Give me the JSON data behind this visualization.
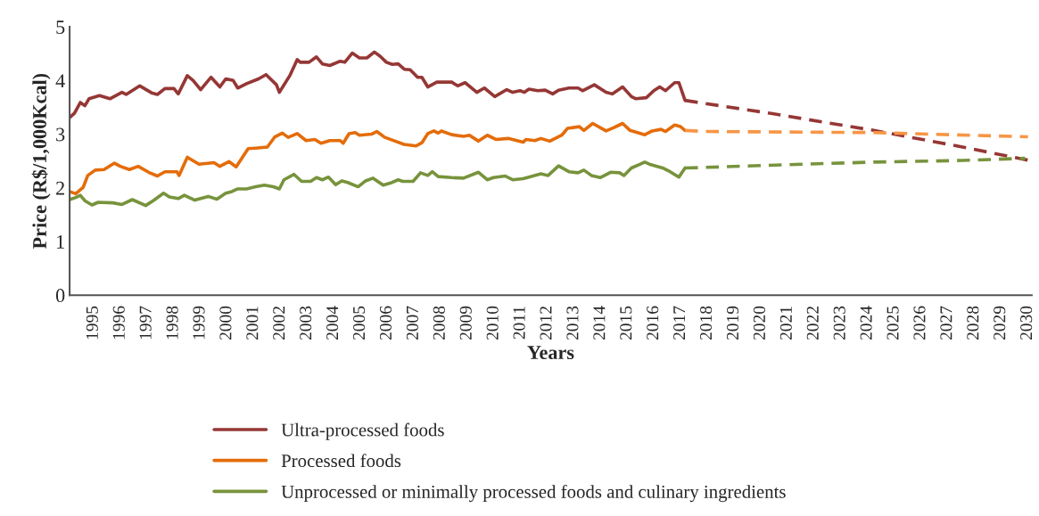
{
  "chart_data": {
    "type": "line",
    "xlabel": "Years",
    "ylabel": "Price (R$/1,000Kcal)",
    "xlim": [
      1994.1,
      2030.15
    ],
    "xticks": [
      1995,
      1996,
      1997,
      1998,
      1999,
      2000,
      2001,
      2002,
      2003,
      2004,
      2005,
      2006,
      2007,
      2008,
      2009,
      2010,
      2011,
      2012,
      2013,
      2014,
      2015,
      2016,
      2017,
      2018,
      2019,
      2020,
      2021,
      2022,
      2023,
      2024,
      2025,
      2026,
      2027,
      2028,
      2029,
      2030
    ],
    "ylim": [
      0,
      5
    ],
    "yticks": [
      0,
      1,
      2,
      3,
      4,
      5
    ],
    "grid": false,
    "legend": "bottom",
    "marker": "none",
    "series": [
      {
        "name": "Ultra-processed foods",
        "color": "#953735",
        "line_style": "solid",
        "x": [
          1994.1,
          1994.28,
          1994.5,
          1994.67,
          1994.83,
          1995.22,
          1995.61,
          1996.06,
          1996.22,
          1996.73,
          1997.17,
          1997.39,
          1997.67,
          1998.01,
          1998.17,
          1998.51,
          1998.73,
          1999.01,
          1999.4,
          1999.73,
          1999.95,
          2000.23,
          2000.4,
          2000.73,
          2001.18,
          2001.46,
          2001.85,
          2001.96,
          2002.35,
          2002.63,
          2002.74,
          2003.07,
          2003.35,
          2003.57,
          2003.85,
          2004.24,
          2004.41,
          2004.69,
          2004.96,
          2005.24,
          2005.52,
          2005.74,
          2005.97,
          2006.19,
          2006.41,
          2006.64,
          2006.86,
          2007.14,
          2007.3,
          2007.52,
          2007.86,
          2008.19,
          2008.42,
          2008.64,
          2008.92,
          2009.36,
          2009.64,
          2010.03,
          2010.48,
          2010.7,
          2010.98,
          2011.14,
          2011.31,
          2011.64,
          2011.92,
          2012.2,
          2012.42,
          2012.81,
          2013.15,
          2013.32,
          2013.76,
          2014.2,
          2014.43,
          2014.82,
          2015.15,
          2015.32,
          2015.71,
          2015.99,
          2016.21,
          2016.43,
          2016.77,
          2016.93,
          2017.16
        ],
        "values": [
          3.31,
          3.39,
          3.59,
          3.53,
          3.66,
          3.72,
          3.66,
          3.78,
          3.74,
          3.9,
          3.77,
          3.74,
          3.85,
          3.85,
          3.75,
          4.09,
          4.0,
          3.83,
          4.06,
          3.88,
          4.03,
          4.0,
          3.86,
          3.94,
          4.03,
          4.11,
          3.92,
          3.78,
          4.09,
          4.39,
          4.34,
          4.34,
          4.44,
          4.31,
          4.28,
          4.36,
          4.34,
          4.51,
          4.42,
          4.42,
          4.53,
          4.45,
          4.34,
          4.3,
          4.31,
          4.21,
          4.2,
          4.06,
          4.06,
          3.88,
          3.97,
          3.97,
          3.97,
          3.9,
          3.96,
          3.78,
          3.86,
          3.7,
          3.83,
          3.78,
          3.81,
          3.78,
          3.84,
          3.81,
          3.82,
          3.75,
          3.82,
          3.86,
          3.86,
          3.81,
          3.92,
          3.78,
          3.75,
          3.88,
          3.7,
          3.66,
          3.68,
          3.81,
          3.88,
          3.81,
          3.96,
          3.96,
          3.63
        ]
      },
      {
        "name": "Processed foods",
        "color": "#e46c0a",
        "line_style": "solid",
        "x": [
          1994.1,
          1994.33,
          1994.61,
          1994.78,
          1995.06,
          1995.39,
          1995.78,
          1996.0,
          1996.34,
          1996.67,
          1997.06,
          1997.39,
          1997.67,
          1998.12,
          1998.2,
          1998.51,
          1998.95,
          1999.51,
          1999.73,
          2000.07,
          2000.34,
          2000.79,
          2001.07,
          2001.51,
          2001.79,
          2002.07,
          2002.29,
          2002.63,
          2002.96,
          2003.29,
          2003.52,
          2003.85,
          2004.24,
          2004.35,
          2004.57,
          2004.8,
          2004.96,
          2005.41,
          2005.61,
          2005.91,
          2006.3,
          2006.63,
          2007.08,
          2007.3,
          2007.52,
          2007.75,
          2007.91,
          2008.03,
          2008.42,
          2008.86,
          2009.08,
          2009.42,
          2009.75,
          2010.09,
          2010.53,
          2011.09,
          2011.2,
          2011.53,
          2011.76,
          2012.09,
          2012.54,
          2012.76,
          2013.2,
          2013.37,
          2013.7,
          2014.2,
          2014.48,
          2014.82,
          2015.1,
          2015.65,
          2015.93,
          2016.26,
          2016.43,
          2016.77,
          2016.99,
          2017.16
        ],
        "values": [
          1.93,
          1.89,
          2.01,
          2.23,
          2.33,
          2.34,
          2.46,
          2.4,
          2.34,
          2.4,
          2.29,
          2.22,
          2.3,
          2.3,
          2.23,
          2.57,
          2.44,
          2.47,
          2.4,
          2.49,
          2.39,
          2.73,
          2.74,
          2.76,
          2.95,
          3.02,
          2.94,
          3.01,
          2.88,
          2.9,
          2.83,
          2.88,
          2.88,
          2.83,
          3.01,
          3.03,
          2.98,
          3.0,
          3.05,
          2.94,
          2.87,
          2.81,
          2.78,
          2.84,
          3.01,
          3.06,
          3.02,
          3.06,
          2.99,
          2.96,
          2.98,
          2.87,
          2.98,
          2.9,
          2.92,
          2.85,
          2.9,
          2.88,
          2.92,
          2.87,
          2.98,
          3.11,
          3.14,
          3.07,
          3.2,
          3.06,
          3.12,
          3.2,
          3.07,
          2.99,
          3.06,
          3.09,
          3.05,
          3.17,
          3.14,
          3.07
        ]
      },
      {
        "name": "Unprocessed or minimally processed foods and culinary ingredients",
        "color": "#77933c",
        "line_style": "solid",
        "x": [
          1994.1,
          1994.33,
          1994.5,
          1994.67,
          1994.94,
          1995.17,
          1995.72,
          1996.06,
          1996.45,
          1996.95,
          1997.23,
          1997.62,
          1997.84,
          1998.17,
          1998.4,
          1998.79,
          1999.29,
          1999.62,
          1999.95,
          2000.18,
          2000.4,
          2000.73,
          2001.07,
          2001.4,
          2001.73,
          2001.96,
          2002.13,
          2002.51,
          2002.79,
          2003.13,
          2003.35,
          2003.57,
          2003.8,
          2004.07,
          2004.3,
          2004.52,
          2004.91,
          2005.19,
          2005.47,
          2005.85,
          2006.13,
          2006.41,
          2006.58,
          2006.97,
          2007.25,
          2007.52,
          2007.69,
          2007.91,
          2008.42,
          2008.86,
          2009.42,
          2009.75,
          2009.98,
          2010.42,
          2010.7,
          2011.09,
          2011.31,
          2011.76,
          2012.03,
          2012.42,
          2012.81,
          2013.15,
          2013.37,
          2013.65,
          2013.98,
          2014.37,
          2014.71,
          2014.87,
          2015.15,
          2015.43,
          2015.65,
          2015.88,
          2016.32,
          2016.6,
          2016.93,
          2017.16
        ],
        "values": [
          1.78,
          1.82,
          1.86,
          1.76,
          1.68,
          1.73,
          1.72,
          1.69,
          1.78,
          1.67,
          1.76,
          1.9,
          1.83,
          1.8,
          1.86,
          1.77,
          1.84,
          1.79,
          1.9,
          1.93,
          1.98,
          1.98,
          2.02,
          2.05,
          2.02,
          1.98,
          2.15,
          2.25,
          2.12,
          2.12,
          2.19,
          2.15,
          2.2,
          2.06,
          2.13,
          2.1,
          2.02,
          2.13,
          2.18,
          2.05,
          2.09,
          2.15,
          2.12,
          2.12,
          2.28,
          2.23,
          2.3,
          2.21,
          2.19,
          2.18,
          2.29,
          2.15,
          2.19,
          2.22,
          2.15,
          2.17,
          2.2,
          2.26,
          2.23,
          2.41,
          2.3,
          2.28,
          2.33,
          2.23,
          2.19,
          2.29,
          2.28,
          2.23,
          2.37,
          2.43,
          2.48,
          2.43,
          2.37,
          2.3,
          2.2,
          2.37
        ]
      },
      {
        "color": "#953735",
        "line_style": "dashed",
        "x": [
          2017.16,
          2017.66,
          2020.33,
          2024.23,
          2027.56,
          2030.07
        ],
        "values": [
          3.63,
          3.59,
          3.39,
          3.07,
          2.76,
          2.51
        ]
      },
      {
        "color": "#f79646",
        "line_style": "dashed",
        "x": [
          2017.16,
          2017.88,
          2024.23,
          2030.01
        ],
        "values": [
          3.07,
          3.05,
          3.03,
          2.95
        ]
      },
      {
        "color": "#77933c",
        "line_style": "dashed",
        "x": [
          2017.16,
          2017.88,
          2020.89,
          2024.23,
          2027.56,
          2029.9
        ],
        "values": [
          2.37,
          2.38,
          2.43,
          2.48,
          2.51,
          2.55
        ]
      }
    ]
  }
}
